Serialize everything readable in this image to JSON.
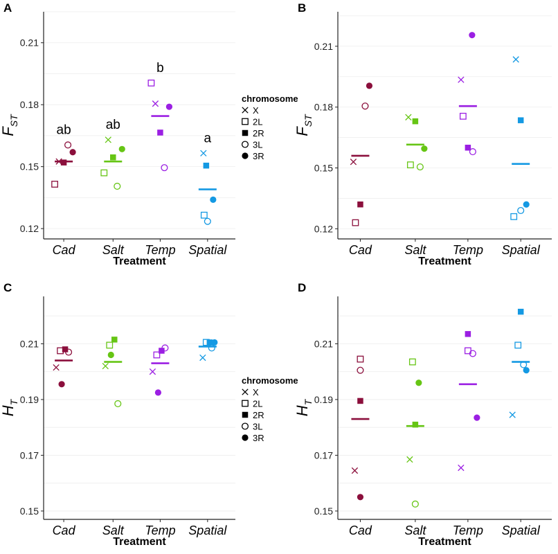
{
  "colors": {
    "Cad": "#8b0f3c",
    "Salt": "#66c514",
    "Temp": "#9b1fe3",
    "Spatial": "#1499e3",
    "axis": "#222222",
    "grid": "#eeeeee",
    "legend_key": "#000000"
  },
  "legend": {
    "title": "chromosome",
    "items": [
      {
        "label": "X",
        "shape": "cross"
      },
      {
        "label": "2L",
        "shape": "square-open"
      },
      {
        "label": "2R",
        "shape": "square-filled"
      },
      {
        "label": "3L",
        "shape": "circle-open"
      },
      {
        "label": "3R",
        "shape": "circle-filled"
      }
    ]
  },
  "chart_data": [
    {
      "panel": "A",
      "type": "scatter",
      "metric": "FST",
      "ylabel_main": "F",
      "ylabel_sub": "ST",
      "xlabel": "Treatment",
      "categories": [
        "Cad",
        "Salt",
        "Temp",
        "Spatial"
      ],
      "yticks": [
        0.12,
        0.15,
        0.18,
        0.21
      ],
      "ytick_labels": [
        "0.12",
        "0.15",
        "0.18",
        "0.21"
      ],
      "ylim": [
        0.115,
        0.225
      ],
      "grid": true,
      "show_legend": true,
      "annotations": [
        "ab",
        "ab",
        "b",
        "a"
      ],
      "means": [
        0.1525,
        0.1525,
        0.1745,
        0.139
      ],
      "points": {
        "Cad": {
          "X": 0.1525,
          "2L": 0.1415,
          "2R": 0.152,
          "3L": 0.1605,
          "3R": 0.157
        },
        "Salt": {
          "X": 0.163,
          "2L": 0.147,
          "2R": 0.1545,
          "3L": 0.1405,
          "3R": 0.1585
        },
        "Temp": {
          "X": 0.1805,
          "2L": 0.1905,
          "2R": 0.1665,
          "3L": 0.1495,
          "3R": 0.179
        },
        "Spatial": {
          "X": 0.1565,
          "2L": 0.1265,
          "2R": 0.1505,
          "3L": 0.1235,
          "3R": 0.134
        }
      }
    },
    {
      "panel": "B",
      "type": "scatter",
      "metric": "FST",
      "ylabel_main": "F",
      "ylabel_sub": "ST",
      "xlabel": "Treatment",
      "categories": [
        "Cad",
        "Salt",
        "Temp",
        "Spatial"
      ],
      "yticks": [
        0.12,
        0.15,
        0.18,
        0.21
      ],
      "ytick_labels": [
        "0.12",
        "0.15",
        "0.18",
        "0.21"
      ],
      "ylim": [
        0.115,
        0.227
      ],
      "grid": true,
      "show_legend": false,
      "annotations": [],
      "means": [
        0.156,
        0.1615,
        0.1805,
        0.152
      ],
      "points": {
        "Cad": {
          "X": 0.153,
          "2L": 0.123,
          "2R": 0.132,
          "3L": 0.1805,
          "3R": 0.1905
        },
        "Salt": {
          "X": 0.175,
          "2L": 0.1515,
          "2R": 0.173,
          "3L": 0.1505,
          "3R": 0.1595
        },
        "Temp": {
          "X": 0.1935,
          "2L": 0.1755,
          "2R": 0.16,
          "3L": 0.158,
          "3R": 0.2155
        },
        "Spatial": {
          "X": 0.2035,
          "2L": 0.126,
          "2R": 0.1735,
          "3L": 0.129,
          "3R": 0.132
        }
      }
    },
    {
      "panel": "C",
      "type": "scatter",
      "metric": "HT",
      "ylabel_main": "H",
      "ylabel_sub": "T",
      "xlabel": "Treatment",
      "categories": [
        "Cad",
        "Salt",
        "Temp",
        "Spatial"
      ],
      "yticks": [
        0.15,
        0.17,
        0.19,
        0.21
      ],
      "ytick_labels": [
        "0.15",
        "0.17",
        "0.19",
        "0.21"
      ],
      "ylim": [
        0.147,
        0.227
      ],
      "grid": true,
      "show_legend": true,
      "annotations": [],
      "means": [
        0.204,
        0.2035,
        0.203,
        0.209
      ],
      "points": {
        "Cad": {
          "X": 0.2015,
          "2L": 0.2075,
          "2R": 0.208,
          "3L": 0.207,
          "3R": 0.1955
        },
        "Salt": {
          "X": 0.202,
          "2L": 0.2095,
          "2R": 0.2115,
          "3L": 0.1885,
          "3R": 0.206
        },
        "Temp": {
          "X": 0.2,
          "2L": 0.206,
          "2R": 0.2075,
          "3L": 0.2085,
          "3R": 0.1925
        },
        "Spatial": {
          "X": 0.205,
          "2L": 0.2105,
          "2R": 0.2105,
          "3L": 0.2085,
          "3R": 0.2105
        }
      }
    },
    {
      "panel": "D",
      "type": "scatter",
      "metric": "HT",
      "ylabel_main": "H",
      "ylabel_sub": "T",
      "xlabel": "Treatment",
      "categories": [
        "Cad",
        "Salt",
        "Temp",
        "Spatial"
      ],
      "yticks": [
        0.15,
        0.17,
        0.19,
        0.21
      ],
      "ytick_labels": [
        "0.15",
        "0.17",
        "0.19",
        "0.21"
      ],
      "ylim": [
        0.147,
        0.227
      ],
      "grid": true,
      "show_legend": false,
      "annotations": [],
      "means": [
        0.183,
        0.1805,
        0.1955,
        0.2035
      ],
      "points": {
        "Cad": {
          "X": 0.1645,
          "2L": 0.2045,
          "2R": 0.1895,
          "3L": 0.2005,
          "3R": 0.155
        },
        "Salt": {
          "X": 0.1685,
          "2L": 0.2035,
          "2R": 0.181,
          "3L": 0.1525,
          "3R": 0.196
        },
        "Temp": {
          "X": 0.1655,
          "2L": 0.2075,
          "2R": 0.2135,
          "3L": 0.2065,
          "3R": 0.1835
        },
        "Spatial": {
          "X": 0.1845,
          "2L": 0.2095,
          "2R": 0.2215,
          "3L": 0.2025,
          "3R": 0.2005
        }
      }
    }
  ]
}
